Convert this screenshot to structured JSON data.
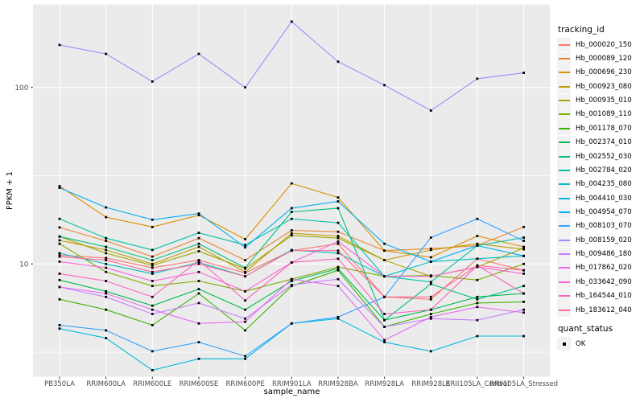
{
  "figure": {
    "background": "#FFFFFF",
    "panel_background": "#EBEBEB",
    "grid_color": "#FFFFFF",
    "tick_text_color": "#4D4D4D",
    "tick_mark_color": "#333333",
    "point_color": "#000000"
  },
  "legend": {
    "tracking_title": "tracking_id",
    "quant_title": "quant_status",
    "quant_items": [
      {
        "label": "OK"
      }
    ]
  },
  "chart_data": {
    "type": "line",
    "title": "",
    "xlabel": "sample_name",
    "ylabel": "FPKM + 1",
    "y_scale": "log10",
    "y_ticks": [
      100,
      10
    ],
    "y_minor_ticks": [
      31.62,
      3.162
    ],
    "ylim": [
      2.3,
      292
    ],
    "grid": true,
    "legend_position": "right",
    "point_shape": "filled-square",
    "categories": [
      "PB350LA",
      "RRIM600LA",
      "RRIM600LE",
      "RRIM600SE",
      "RRIM600PE",
      "RRIM901LA",
      "RRIM928BA",
      "RRIM928LA",
      "RRIM928LE",
      "RRII105LA_Control",
      "RRII105LA_Stressed"
    ],
    "series": [
      {
        "name": "Hb_000020_150",
        "color": "#F8766D",
        "values": [
          11.2,
          10.8,
          9.5,
          10.5,
          8.9,
          11.9,
          13.0,
          6.5,
          6.3,
          10.7,
          9.2
        ]
      },
      {
        "name": "Hb_000089_120",
        "color": "#EA8331",
        "values": [
          16.1,
          13.5,
          11.0,
          14.0,
          10.5,
          15.5,
          15.2,
          11.9,
          12.2,
          12.7,
          16.2
        ]
      },
      {
        "name": "Hb_000696_230",
        "color": "#D89000",
        "values": [
          27.6,
          18.4,
          16.2,
          18.9,
          13.8,
          28.6,
          23.8,
          11.9,
          10.9,
          14.4,
          12.5
        ]
      },
      {
        "name": "Hb_000923_080",
        "color": "#C09B00",
        "values": [
          13.6,
          12.0,
          10.0,
          12.5,
          9.0,
          14.9,
          14.4,
          10.5,
          12.0,
          13.0,
          12.1
        ]
      },
      {
        "name": "Hb_000935_010",
        "color": "#A3A500",
        "values": [
          14.3,
          11.5,
          9.8,
          11.8,
          9.4,
          14.5,
          14.0,
          10.5,
          8.5,
          9.6,
          12.3
        ]
      },
      {
        "name": "Hb_001089_110",
        "color": "#7CAE00",
        "values": [
          13.0,
          9.0,
          7.5,
          8.0,
          7.0,
          8.2,
          9.6,
          8.5,
          8.6,
          8.1,
          10.0
        ]
      },
      {
        "name": "Hb_001178_070",
        "color": "#39B600",
        "values": [
          6.3,
          5.5,
          4.5,
          6.8,
          4.2,
          7.5,
          9.2,
          4.4,
          5.2,
          6.0,
          6.1
        ]
      },
      {
        "name": "Hb_002374_010",
        "color": "#00BB4E",
        "values": [
          8.1,
          7.0,
          5.8,
          7.2,
          5.5,
          8.0,
          9.4,
          4.8,
          5.5,
          6.5,
          6.8
        ]
      },
      {
        "name": "Hb_002552_030",
        "color": "#00BF7D",
        "values": [
          14.3,
          12.5,
          10.5,
          13.0,
          9.5,
          19.7,
          20.7,
          4.8,
          7.7,
          6.3,
          7.5
        ]
      },
      {
        "name": "Hb_002784_020",
        "color": "#00C1A3",
        "values": [
          18.0,
          14.0,
          12.0,
          15.0,
          12.8,
          18.0,
          17.1,
          8.5,
          7.9,
          12.7,
          14.1
        ]
      },
      {
        "name": "Hb_004235_080",
        "color": "#00BFC4",
        "values": [
          11.5,
          10.0,
          8.8,
          10.2,
          8.5,
          12.0,
          11.5,
          8.5,
          10.3,
          10.7,
          11.1
        ]
      },
      {
        "name": "Hb_004410_030",
        "color": "#00BAE0",
        "values": [
          4.3,
          3.8,
          2.5,
          2.9,
          2.9,
          4.6,
          4.9,
          3.6,
          3.2,
          3.9,
          3.9
        ]
      },
      {
        "name": "Hb_004954_070",
        "color": "#00B0F6",
        "values": [
          27.0,
          20.9,
          17.8,
          19.3,
          12.4,
          20.7,
          22.6,
          13.0,
          10.3,
          12.7,
          11.1
        ]
      },
      {
        "name": "Hb_008103_070",
        "color": "#35A2FF",
        "values": [
          4.5,
          4.2,
          3.2,
          3.6,
          3.0,
          4.6,
          5.0,
          6.5,
          14.1,
          18.0,
          13.5
        ]
      },
      {
        "name": "Hb_008159_020",
        "color": "#9590FF",
        "values": [
          174,
          155,
          108,
          155,
          100,
          236,
          140,
          103,
          74,
          112,
          121
        ]
      },
      {
        "name": "Hb_009486_180",
        "color": "#C77CFF",
        "values": [
          7.4,
          6.5,
          5.2,
          6.0,
          4.9,
          7.6,
          8.2,
          4.4,
          4.9,
          4.8,
          5.5
        ]
      },
      {
        "name": "Hb_017862_020",
        "color": "#E76BF3",
        "values": [
          7.4,
          6.8,
          5.5,
          4.6,
          4.7,
          8.2,
          7.5,
          3.7,
          5.0,
          5.7,
          5.3
        ]
      },
      {
        "name": "Hb_033642_090",
        "color": "#FA62DB",
        "values": [
          10.3,
          9.5,
          8.0,
          9.0,
          7.0,
          10.2,
          13.4,
          8.5,
          8.5,
          9.6,
          8.8
        ]
      },
      {
        "name": "Hb_164544_010",
        "color": "#FF62BC",
        "values": [
          8.8,
          8.0,
          6.5,
          10.5,
          6.2,
          10.2,
          10.7,
          5.2,
          5.5,
          9.8,
          6.8
        ]
      },
      {
        "name": "Hb_183612_040",
        "color": "#FF6A98",
        "values": [
          11.0,
          10.5,
          9.0,
          10.0,
          8.5,
          11.9,
          11.9,
          6.5,
          6.5,
          9.8,
          9.2
        ]
      }
    ]
  }
}
